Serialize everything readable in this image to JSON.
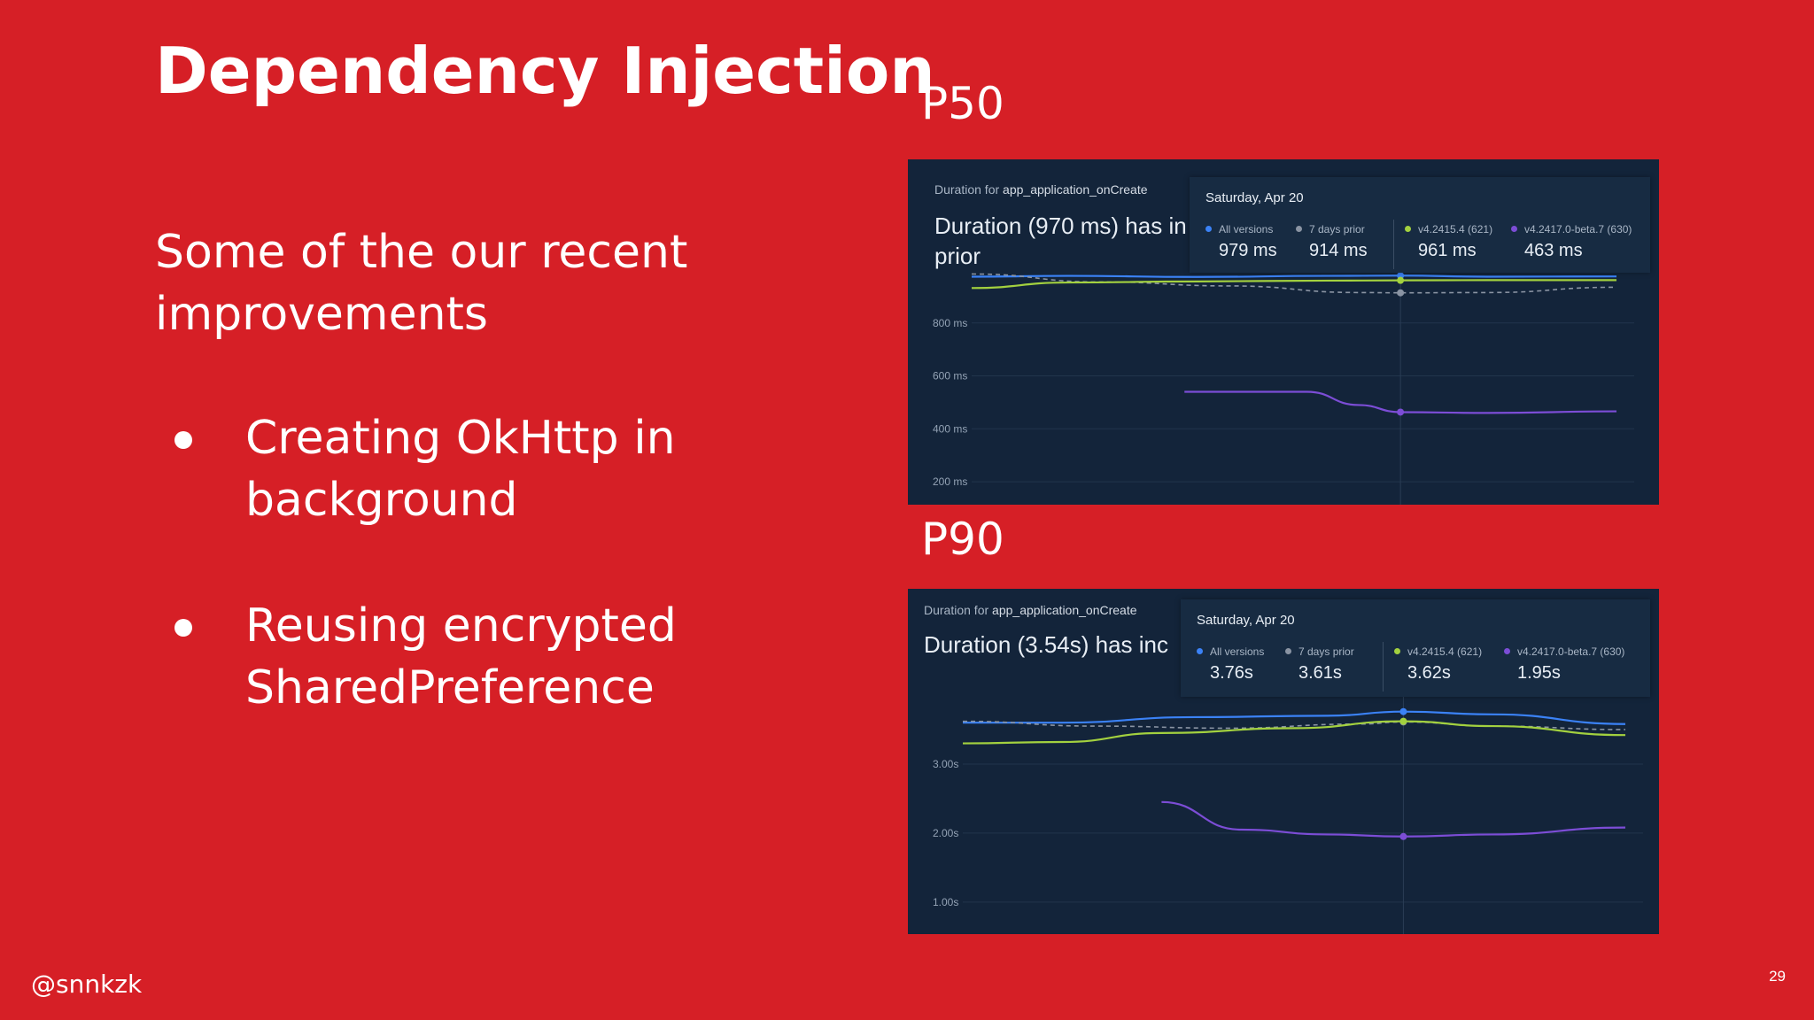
{
  "slide": {
    "title": "Dependency Injection",
    "intro": "Some of the our recent improvements",
    "bullets": [
      "Creating OkHttp in background",
      "Reusing encrypted SharedPreference"
    ],
    "handle": "@snnkzk",
    "page_number": "29"
  },
  "colors": {
    "background": "#d61f26",
    "card": "#13243a",
    "all_versions": "#3b82f6",
    "seven_days_prior": "#8a94a3",
    "v4_2415_4": "#a3d13f",
    "v4_2417_0_beta": "#7c4dd6"
  },
  "panels": [
    {
      "label": "P50",
      "subtitle_prefix": "Duration for",
      "subtitle_metric": "app_application_onCreate",
      "headline_line1": "Duration (970 ms) has in",
      "headline_line2": "prior",
      "tooltip": {
        "date": "Saturday, Apr 20",
        "legend": [
          {
            "name": "All versions",
            "value": "979 ms",
            "color_key": "all_versions"
          },
          {
            "name": "7 days prior",
            "value": "914 ms",
            "color_key": "seven_days_prior"
          },
          {
            "name": "v4.2415.4 (621)",
            "value": "961 ms",
            "color_key": "v4_2415_4"
          },
          {
            "name": "v4.2417.0-beta.7 (630)",
            "value": "463 ms",
            "color_key": "v4_2417_0_beta"
          }
        ]
      },
      "chart_data": {
        "type": "line",
        "y_ticks": [
          "800 ms",
          "600 ms",
          "400 ms",
          "200 ms"
        ],
        "y_tick_values": [
          800,
          600,
          400,
          200
        ],
        "ylim": [
          130,
          1000
        ],
        "x_range": [
          0,
          1
        ],
        "highlight_x": 0.665,
        "series": [
          {
            "color_key": "all_versions",
            "dashed": false,
            "x": [
              0,
              0.15,
              0.35,
              0.55,
              0.665,
              0.8,
              1
            ],
            "y": [
              975,
              978,
              974,
              978,
              979,
              975,
              976
            ]
          },
          {
            "color_key": "seven_days_prior",
            "dashed": true,
            "x": [
              0,
              0.2,
              0.4,
              0.6,
              0.665,
              0.8,
              1
            ],
            "y": [
              985,
              955,
              940,
              915,
              914,
              915,
              935
            ]
          },
          {
            "color_key": "v4_2415_4",
            "dashed": false,
            "x": [
              0,
              0.15,
              0.35,
              0.55,
              0.665,
              0.8,
              1
            ],
            "y": [
              932,
              953,
              957,
              960,
              961,
              962,
              962
            ]
          },
          {
            "color_key": "v4_2417_0_beta",
            "dashed": false,
            "x": [
              0.33,
              0.52,
              0.6,
              0.665,
              0.8,
              1
            ],
            "y": [
              540,
              540,
              490,
              463,
              460,
              466
            ]
          }
        ]
      }
    },
    {
      "label": "P90",
      "subtitle_prefix": "Duration for",
      "subtitle_metric": "app_application_onCreate",
      "headline_line1": "Duration (3.54s) has inc",
      "headline_line2": "",
      "tooltip": {
        "date": "Saturday, Apr 20",
        "legend": [
          {
            "name": "All versions",
            "value": "3.76s",
            "color_key": "all_versions"
          },
          {
            "name": "7 days prior",
            "value": "3.61s",
            "color_key": "seven_days_prior"
          },
          {
            "name": "v4.2415.4 (621)",
            "value": "3.62s",
            "color_key": "v4_2415_4"
          },
          {
            "name": "v4.2417.0-beta.7 (630)",
            "value": "1.95s",
            "color_key": "v4_2417_0_beta"
          }
        ]
      },
      "chart_data": {
        "type": "line",
        "y_ticks": [
          "3.00s",
          "2.00s",
          "1.00s"
        ],
        "y_tick_values": [
          3,
          2,
          1
        ],
        "ylim": [
          0.6,
          4.0
        ],
        "x_range": [
          0,
          1
        ],
        "highlight_x": 0.665,
        "series": [
          {
            "color_key": "all_versions",
            "dashed": false,
            "x": [
              0,
              0.15,
              0.35,
              0.55,
              0.665,
              0.8,
              1
            ],
            "y": [
              3.6,
              3.6,
              3.68,
              3.7,
              3.76,
              3.72,
              3.58
            ]
          },
          {
            "color_key": "seven_days_prior",
            "dashed": true,
            "x": [
              0,
              0.2,
              0.4,
              0.6,
              0.665,
              0.8,
              1
            ],
            "y": [
              3.62,
              3.55,
              3.52,
              3.58,
              3.61,
              3.55,
              3.5
            ]
          },
          {
            "color_key": "v4_2415_4",
            "dashed": false,
            "x": [
              0,
              0.15,
              0.3,
              0.5,
              0.665,
              0.8,
              1
            ],
            "y": [
              3.3,
              3.32,
              3.45,
              3.52,
              3.62,
              3.55,
              3.42
            ]
          },
          {
            "color_key": "v4_2417_0_beta",
            "dashed": false,
            "x": [
              0.3,
              0.42,
              0.55,
              0.665,
              0.8,
              1
            ],
            "y": [
              2.45,
              2.05,
              1.98,
              1.95,
              1.98,
              2.08
            ]
          }
        ]
      }
    }
  ]
}
